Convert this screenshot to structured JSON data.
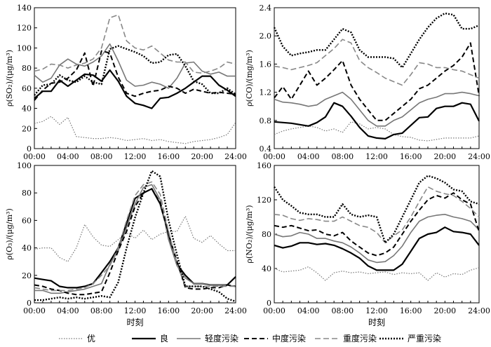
{
  "legend": [
    "优",
    "良",
    "轻度污染",
    "中度污染",
    "重度污染",
    "严重污染"
  ],
  "series_styles": [
    {
      "name": "优",
      "color": "#777777",
      "width": 1.2,
      "dash": "1.5,2"
    },
    {
      "name": "良",
      "color": "#000000",
      "width": 2.2,
      "dash": ""
    },
    {
      "name": "轻度污染",
      "color": "#777777",
      "width": 1.6,
      "dash": ""
    },
    {
      "name": "中度污染",
      "color": "#000000",
      "width": 2.0,
      "dash": "7,4"
    },
    {
      "name": "重度污染",
      "color": "#888888",
      "width": 1.6,
      "dash": "8,4"
    },
    {
      "name": "严重污染",
      "color": "#000000",
      "width": 2.4,
      "dash": "2,2"
    }
  ],
  "chart_data": [
    {
      "type": "line",
      "ylabel": "ρ(SO₂)/(μg/m³)",
      "xlabel": "时刻",
      "x": [
        "00:00",
        "01:00",
        "02:00",
        "03:00",
        "04:00",
        "05:00",
        "06:00",
        "07:00",
        "08:00",
        "09:00",
        "10:00",
        "11:00",
        "12:00",
        "13:00",
        "14:00",
        "15:00",
        "16:00",
        "17:00",
        "18:00",
        "19:00",
        "20:00",
        "21:00",
        "22:00",
        "23:00",
        "24:00"
      ],
      "xticks": [
        "00:00",
        "04:00",
        "08:00",
        "12:00",
        "16:00",
        "20:00",
        "24:00"
      ],
      "ylim": [
        0,
        140
      ],
      "yticks": [
        0,
        20,
        40,
        60,
        80,
        100,
        120,
        140
      ],
      "series": [
        {
          "name": "优",
          "values": [
            25,
            27,
            32,
            24,
            31,
            12,
            11,
            10,
            10,
            11,
            10,
            8,
            9,
            10,
            8,
            9,
            7,
            6,
            5,
            7,
            8,
            9,
            11,
            14,
            26
          ]
        },
        {
          "name": "良",
          "values": [
            50,
            57,
            57,
            68,
            62,
            68,
            74,
            73,
            67,
            78,
            67,
            52,
            45,
            43,
            40,
            50,
            51,
            55,
            60,
            66,
            72,
            72,
            63,
            58,
            52
          ]
        },
        {
          "name": "轻度污染",
          "values": [
            73,
            66,
            70,
            83,
            89,
            84,
            82,
            86,
            92,
            104,
            87,
            68,
            62,
            63,
            66,
            64,
            60,
            70,
            85,
            86,
            77,
            74,
            76,
            72,
            72
          ]
        },
        {
          "name": "中度污染",
          "values": [
            48,
            58,
            65,
            66,
            70,
            78,
            95,
            62,
            97,
            95,
            71,
            55,
            52,
            55,
            57,
            58,
            62,
            60,
            55,
            59,
            57,
            55,
            56,
            55,
            54
          ]
        },
        {
          "name": "重度污染",
          "values": [
            77,
            79,
            84,
            83,
            80,
            83,
            85,
            89,
            100,
            130,
            133,
            107,
            100,
            98,
            102,
            95,
            88,
            86,
            86,
            76,
            75,
            77,
            80,
            86,
            84
          ]
        },
        {
          "name": "严重污染",
          "values": [
            53,
            63,
            64,
            73,
            68,
            66,
            72,
            66,
            64,
            99,
            102,
            99,
            96,
            92,
            85,
            86,
            93,
            94,
            82,
            67,
            64,
            55,
            55,
            60,
            54
          ]
        }
      ]
    },
    {
      "type": "line",
      "ylabel": "ρ(CO)/(mg/m³)",
      "xlabel": "时刻",
      "x": [
        "00:00",
        "01:00",
        "02:00",
        "03:00",
        "04:00",
        "05:00",
        "06:00",
        "07:00",
        "08:00",
        "09:00",
        "10:00",
        "11:00",
        "12:00",
        "13:00",
        "14:00",
        "15:00",
        "16:00",
        "17:00",
        "18:00",
        "19:00",
        "20:00",
        "21:00",
        "22:00",
        "23:00",
        "24:00"
      ],
      "xticks": [
        "00:00",
        "04:00",
        "08:00",
        "12:00",
        "16:00",
        "20:00",
        "24:00"
      ],
      "ylim": [
        0.4,
        2.4
      ],
      "yticks": [
        0.4,
        0.8,
        1.2,
        1.6,
        2.0,
        2.4
      ],
      "series": [
        {
          "name": "优",
          "values": [
            0.6,
            0.65,
            0.68,
            0.7,
            0.72,
            0.7,
            0.65,
            0.68,
            0.63,
            0.78,
            0.75,
            0.68,
            0.7,
            0.68,
            0.6,
            0.57,
            0.56,
            0.52,
            0.51,
            0.53,
            0.55,
            0.55,
            0.55,
            0.55,
            0.58
          ]
        },
        {
          "name": "良",
          "values": [
            0.78,
            0.77,
            0.76,
            0.74,
            0.72,
            0.77,
            0.85,
            1.05,
            1.0,
            0.86,
            0.7,
            0.58,
            0.55,
            0.54,
            0.6,
            0.62,
            0.73,
            0.84,
            0.85,
            0.97,
            1.0,
            1.0,
            1.05,
            1.03,
            0.79
          ]
        },
        {
          "name": "轻度污染",
          "values": [
            1.1,
            1.06,
            1.05,
            1.03,
            1.0,
            1.02,
            1.1,
            1.15,
            1.2,
            1.1,
            0.95,
            0.8,
            0.72,
            0.72,
            0.8,
            0.85,
            0.95,
            1.05,
            1.1,
            1.13,
            1.18,
            1.18,
            1.2,
            1.18,
            1.15
          ]
        },
        {
          "name": "中度污染",
          "values": [
            1.12,
            1.28,
            1.1,
            1.3,
            1.5,
            1.3,
            1.4,
            1.52,
            1.65,
            1.3,
            1.1,
            0.95,
            0.8,
            0.8,
            0.9,
            1.0,
            1.1,
            1.25,
            1.3,
            1.4,
            1.5,
            1.58,
            1.7,
            1.9,
            1.15
          ]
        },
        {
          "name": "重度污染",
          "values": [
            1.57,
            1.55,
            1.52,
            1.55,
            1.58,
            1.62,
            1.72,
            1.82,
            1.95,
            1.9,
            1.65,
            1.55,
            1.48,
            1.4,
            1.35,
            1.3,
            1.45,
            1.62,
            1.6,
            1.55,
            1.55,
            1.52,
            1.5,
            1.45,
            1.4
          ]
        },
        {
          "name": "严重污染",
          "values": [
            2.12,
            1.85,
            1.72,
            1.75,
            1.77,
            1.8,
            1.8,
            1.95,
            2.1,
            2.05,
            1.8,
            1.7,
            1.7,
            1.7,
            1.68,
            1.55,
            1.75,
            1.95,
            2.12,
            2.25,
            2.32,
            2.3,
            2.1,
            2.1,
            2.15
          ]
        }
      ]
    },
    {
      "type": "line",
      "ylabel": "ρ(O₃)/(μg/m³)",
      "xlabel": "时刻",
      "x": [
        "00:00",
        "01:00",
        "02:00",
        "03:00",
        "04:00",
        "05:00",
        "06:00",
        "07:00",
        "08:00",
        "09:00",
        "10:00",
        "11:00",
        "12:00",
        "13:00",
        "14:00",
        "15:00",
        "16:00",
        "17:00",
        "18:00",
        "19:00",
        "20:00",
        "21:00",
        "22:00",
        "23:00",
        "24:00"
      ],
      "xticks": [
        "00:00",
        "04:00",
        "08:00",
        "12:00",
        "16:00",
        "20:00",
        "24:00"
      ],
      "ylim": [
        0,
        100
      ],
      "yticks": [
        0,
        20,
        40,
        60,
        80,
        100
      ],
      "series": [
        {
          "name": "优",
          "values": [
            39,
            40,
            40,
            33,
            30,
            40,
            57,
            48,
            42,
            41,
            46,
            51,
            47,
            53,
            46,
            50,
            52,
            52,
            63,
            47,
            44,
            49,
            43,
            38,
            38
          ]
        },
        {
          "name": "良",
          "values": [
            18,
            17,
            16,
            12,
            11,
            11,
            12,
            14,
            22,
            30,
            40,
            58,
            76,
            80,
            83,
            72,
            50,
            28,
            20,
            14,
            14,
            13,
            13,
            13,
            19
          ]
        },
        {
          "name": "轻度污染",
          "values": [
            9,
            9,
            7,
            7,
            8,
            9,
            10,
            12,
            14,
            28,
            38,
            55,
            72,
            84,
            86,
            75,
            46,
            27,
            18,
            14,
            14,
            13,
            13,
            13,
            12
          ]
        },
        {
          "name": "中度污染",
          "values": [
            13,
            12,
            10,
            9,
            7,
            6,
            6,
            7,
            8,
            22,
            38,
            52,
            70,
            80,
            83,
            73,
            50,
            30,
            11,
            10,
            10,
            11,
            11,
            13,
            12
          ]
        },
        {
          "name": "重度污染",
          "values": [
            11,
            10,
            9,
            9,
            9,
            10,
            11,
            14,
            20,
            27,
            40,
            60,
            78,
            86,
            88,
            79,
            52,
            28,
            12,
            12,
            12,
            12,
            12,
            12,
            12
          ]
        },
        {
          "name": "严重污染",
          "values": [
            2,
            2,
            3,
            4,
            3,
            4,
            3,
            4,
            5,
            4,
            15,
            40,
            62,
            80,
            96,
            92,
            60,
            35,
            12,
            12,
            12,
            10,
            8,
            3,
            1
          ]
        }
      ]
    },
    {
      "type": "line",
      "ylabel": "ρ(NO₂)/(μg/m³)",
      "xlabel": "时刻",
      "x": [
        "00:00",
        "01:00",
        "02:00",
        "03:00",
        "04:00",
        "05:00",
        "06:00",
        "07:00",
        "08:00",
        "09:00",
        "10:00",
        "11:00",
        "12:00",
        "13:00",
        "14:00",
        "15:00",
        "16:00",
        "17:00",
        "18:00",
        "19:00",
        "20:00",
        "21:00",
        "22:00",
        "23:00",
        "24:00"
      ],
      "xticks": [
        "00:00",
        "04:00",
        "08:00",
        "12:00",
        "16:00",
        "20:00",
        "24:00"
      ],
      "ylim": [
        0,
        160
      ],
      "yticks": [
        0,
        40,
        80,
        120,
        160
      ],
      "series": [
        {
          "name": "优",
          "values": [
            40,
            36,
            37,
            38,
            42,
            35,
            26,
            35,
            37,
            35,
            36,
            34,
            35,
            36,
            33,
            35,
            34,
            35,
            26,
            35,
            30,
            34,
            33,
            38,
            41
          ]
        },
        {
          "name": "良",
          "values": [
            67,
            64,
            66,
            70,
            70,
            68,
            69,
            67,
            63,
            58,
            52,
            43,
            38,
            38,
            38,
            45,
            60,
            75,
            80,
            82,
            88,
            83,
            82,
            80,
            67
          ]
        },
        {
          "name": "轻度污染",
          "values": [
            80,
            77,
            78,
            82,
            80,
            75,
            75,
            72,
            70,
            65,
            58,
            50,
            47,
            48,
            55,
            66,
            82,
            95,
            100,
            102,
            103,
            100,
            98,
            95,
            85
          ]
        },
        {
          "name": "中度污染",
          "values": [
            90,
            88,
            90,
            87,
            84,
            85,
            80,
            78,
            82,
            72,
            65,
            58,
            55,
            58,
            65,
            80,
            95,
            108,
            120,
            125,
            122,
            128,
            120,
            115,
            83
          ]
        },
        {
          "name": "重度污染",
          "values": [
            103,
            102,
            98,
            96,
            98,
            97,
            95,
            95,
            100,
            95,
            90,
            88,
            82,
            70,
            78,
            85,
            100,
            118,
            135,
            130,
            127,
            125,
            118,
            110,
            100
          ]
        },
        {
          "name": "严重污染",
          "values": [
            135,
            120,
            113,
            105,
            103,
            103,
            100,
            100,
            115,
            103,
            100,
            102,
            100,
            70,
            80,
            100,
            120,
            140,
            148,
            145,
            140,
            132,
            130,
            118,
            115
          ]
        }
      ]
    }
  ]
}
